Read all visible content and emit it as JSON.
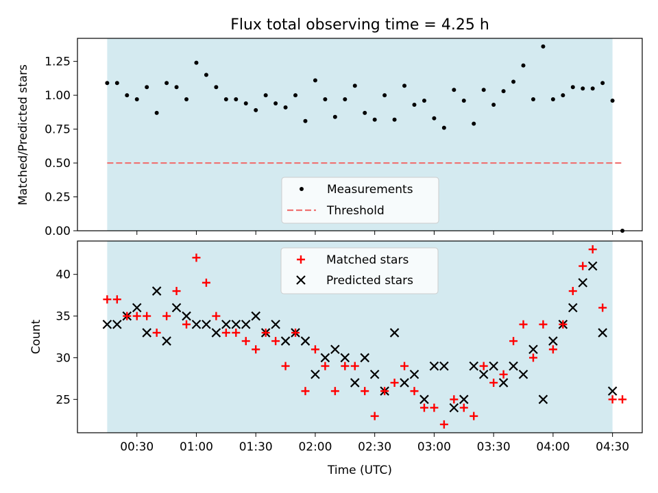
{
  "chart_data": {
    "type": "scatter",
    "title": "Flux total observing time = 4.25 h",
    "shaded_window": {
      "start": "00:15",
      "end": "04:30",
      "color": "#d4eaf0"
    },
    "top": {
      "ylabel": "Matched/Predicted stars",
      "ylim": [
        0,
        1.42
      ],
      "yticks": [
        "0.00",
        "0.25",
        "0.50",
        "0.75",
        "1.00",
        "1.25"
      ],
      "threshold": 0.5,
      "legend": {
        "position": "bottom-center",
        "entries": [
          "Measurements",
          "Threshold"
        ]
      },
      "series": [
        {
          "name": "Measurements",
          "color": "#000000",
          "x": [
            "00:15",
            "00:20",
            "00:25",
            "00:30",
            "00:35",
            "00:40",
            "00:45",
            "00:50",
            "00:55",
            "01:00",
            "01:05",
            "01:10",
            "01:15",
            "01:20",
            "01:25",
            "01:30",
            "01:35",
            "01:40",
            "01:45",
            "01:50",
            "01:55",
            "02:00",
            "02:05",
            "02:10",
            "02:15",
            "02:20",
            "02:25",
            "02:30",
            "02:35",
            "02:40",
            "02:45",
            "02:50",
            "02:55",
            "03:00",
            "03:05",
            "03:10",
            "03:15",
            "03:20",
            "03:25",
            "03:30",
            "03:35",
            "03:40",
            "03:45",
            "03:50",
            "03:55",
            "04:00",
            "04:05",
            "04:10",
            "04:15",
            "04:20",
            "04:25",
            "04:30",
            "04:35"
          ],
          "y": [
            1.09,
            1.09,
            1.0,
            0.97,
            1.06,
            0.87,
            1.09,
            1.06,
            0.97,
            1.24,
            1.15,
            1.06,
            0.97,
            0.97,
            0.94,
            0.89,
            1.0,
            0.94,
            0.91,
            1.0,
            0.81,
            1.11,
            0.97,
            0.84,
            0.97,
            1.07,
            0.87,
            0.82,
            1.0,
            0.82,
            1.07,
            0.93,
            0.96,
            0.83,
            0.76,
            1.04,
            0.96,
            0.79,
            1.04,
            0.93,
            1.03,
            1.1,
            1.22,
            0.97,
            1.36,
            0.97,
            1.0,
            1.06,
            1.05,
            1.05,
            1.09,
            0.96,
            0.0
          ]
        },
        {
          "name": "Threshold",
          "color": "#f07070",
          "x": [
            "00:15",
            "04:35"
          ],
          "y": [
            0.5,
            0.5
          ]
        }
      ]
    },
    "bottom": {
      "ylabel": "Count",
      "xlabel": "Time (UTC)",
      "ylim": [
        21,
        44
      ],
      "yticks": [
        "25",
        "30",
        "35",
        "40"
      ],
      "xticks": [
        "00:30",
        "01:00",
        "01:30",
        "02:00",
        "02:30",
        "03:00",
        "03:30",
        "04:00",
        "04:30"
      ],
      "legend": {
        "position": "top-center",
        "entries": [
          "Matched stars",
          "Predicted stars"
        ]
      },
      "series": [
        {
          "name": "Matched stars",
          "color": "#ff0000",
          "marker": "+",
          "x": [
            "00:15",
            "00:20",
            "00:25",
            "00:30",
            "00:35",
            "00:40",
            "00:45",
            "00:50",
            "00:55",
            "01:00",
            "01:05",
            "01:10",
            "01:15",
            "01:20",
            "01:25",
            "01:30",
            "01:35",
            "01:40",
            "01:45",
            "01:50",
            "01:55",
            "02:00",
            "02:05",
            "02:10",
            "02:15",
            "02:20",
            "02:25",
            "02:30",
            "02:35",
            "02:40",
            "02:45",
            "02:50",
            "02:55",
            "03:00",
            "03:05",
            "03:10",
            "03:15",
            "03:20",
            "03:25",
            "03:30",
            "03:35",
            "03:40",
            "03:45",
            "03:50",
            "03:55",
            "04:00",
            "04:05",
            "04:10",
            "04:15",
            "04:20",
            "04:25",
            "04:30",
            "04:35"
          ],
          "y": [
            37,
            37,
            35,
            35,
            35,
            33,
            35,
            38,
            34,
            42,
            39,
            35,
            33,
            33,
            32,
            31,
            33,
            32,
            29,
            33,
            26,
            31,
            29,
            26,
            29,
            29,
            26,
            23,
            26,
            27,
            29,
            26,
            24,
            24,
            22,
            25,
            24,
            23,
            29,
            27,
            28,
            32,
            34,
            30,
            34,
            31,
            34,
            38,
            41,
            43,
            36,
            25,
            25
          ]
        },
        {
          "name": "Predicted stars",
          "color": "#000000",
          "marker": "x",
          "x": [
            "00:15",
            "00:20",
            "00:25",
            "00:30",
            "00:35",
            "00:40",
            "00:45",
            "00:50",
            "00:55",
            "01:00",
            "01:05",
            "01:10",
            "01:15",
            "01:20",
            "01:25",
            "01:30",
            "01:35",
            "01:40",
            "01:45",
            "01:50",
            "01:55",
            "02:00",
            "02:05",
            "02:10",
            "02:15",
            "02:20",
            "02:25",
            "02:30",
            "02:35",
            "02:40",
            "02:45",
            "02:50",
            "02:55",
            "03:00",
            "03:05",
            "03:10",
            "03:15",
            "03:20",
            "03:25",
            "03:30",
            "03:35",
            "03:40",
            "03:45",
            "03:50",
            "03:55",
            "04:00",
            "04:05",
            "04:10",
            "04:15",
            "04:20",
            "04:25",
            "04:30"
          ],
          "y": [
            34,
            34,
            35,
            36,
            33,
            38,
            32,
            36,
            35,
            34,
            34,
            33,
            34,
            34,
            34,
            35,
            33,
            34,
            32,
            33,
            32,
            28,
            30,
            31,
            30,
            27,
            30,
            28,
            26,
            33,
            27,
            28,
            25,
            29,
            29,
            24,
            25,
            29,
            28,
            29,
            27,
            29,
            28,
            31,
            25,
            32,
            34,
            36,
            39,
            41,
            33,
            26
          ]
        }
      ]
    }
  }
}
